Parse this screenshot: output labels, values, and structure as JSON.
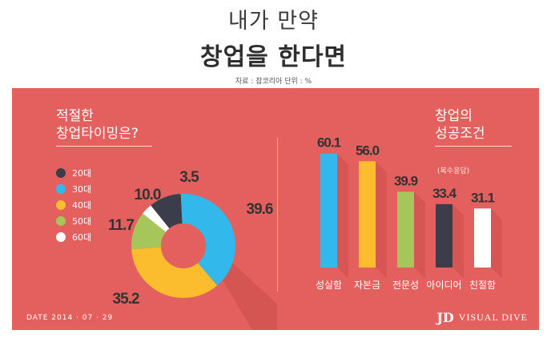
{
  "header": {
    "title_line1": "내가 만약",
    "title_line2": "창업을 한다면",
    "source": "자료 : 잡코리아  단위 : %"
  },
  "left": {
    "title_line1": "적절한",
    "title_line2": "창업타이밍은?"
  },
  "right": {
    "title_line1": "창업의",
    "title_line2": "성공조건",
    "note": "(복수응답)"
  },
  "footer": {
    "date": "DATE 2014 · 07 · 29",
    "brand": "VISUAL DIVE",
    "brand_mark": "JD"
  },
  "colors": {
    "background": "#e4605e",
    "c20": "#3b3d4a",
    "c30": "#33b8ec",
    "c40": "#fbbd2e",
    "c50": "#a6c55a",
    "c60": "#ffffff"
  },
  "chart_data": [
    {
      "type": "pie",
      "title": "적절한 창업타이밍은?",
      "categories": [
        "20대",
        "30대",
        "40대",
        "50대",
        "60대"
      ],
      "values": [
        10.0,
        39.6,
        35.2,
        11.7,
        3.5
      ],
      "value_labels": [
        "10.0",
        "39.6",
        "35.2",
        "11.7",
        "3.5"
      ],
      "colors": [
        "#3b3d4a",
        "#33b8ec",
        "#fbbd2e",
        "#a6c55a",
        "#ffffff"
      ],
      "legend": "left"
    },
    {
      "type": "bar",
      "title": "창업의 성공조건",
      "categories": [
        "성실함",
        "자본금",
        "전문성",
        "아이디어",
        "친절함"
      ],
      "values": [
        60.1,
        56.0,
        39.9,
        33.4,
        31.1
      ],
      "value_labels": [
        "60.1",
        "56.0",
        "39.9",
        "33.4",
        "31.1"
      ],
      "colors": [
        "#33b8ec",
        "#fbbd2e",
        "#a6c55a",
        "#3b3d4a",
        "#ffffff"
      ],
      "ylim": [
        0,
        65
      ]
    }
  ]
}
